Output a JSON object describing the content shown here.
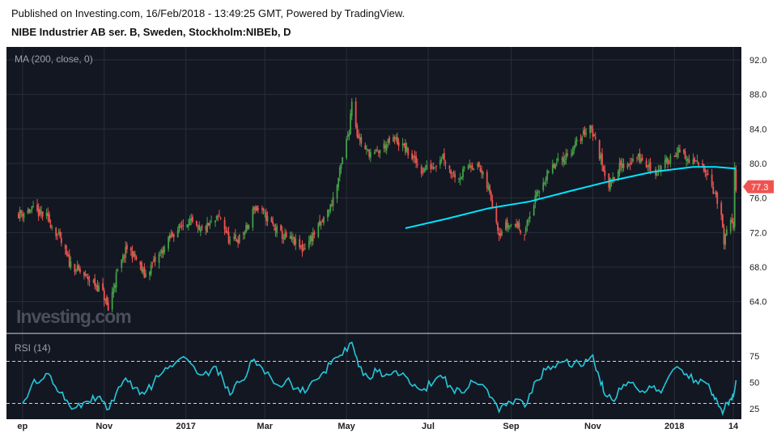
{
  "header": {
    "published": "Published on Investing.com, 16/Feb/2018 - 13:49:25 GMT, Powered by TradingView.",
    "title": "NIBE Industrier AB ser. B, Sweden, Stockholm:NIBEb, D"
  },
  "watermark": "Investing.com",
  "colors": {
    "background": "#131722",
    "up": "#43a047",
    "down": "#ef5350",
    "ma": "#00e5ff",
    "rsi": "#26c6da",
    "price_tag": "#ef5350"
  },
  "chart_data": [
    {
      "type": "candlestick",
      "indicator_label": "MA (200, close, 0)",
      "y_ticks": [
        "92.0",
        "88.0",
        "84.0",
        "80.0",
        "76.0",
        "72.0",
        "68.0",
        "64.0"
      ],
      "ylim": [
        60.5,
        93.5
      ],
      "last_price_label": "77.3",
      "x_ticks": [
        "ep",
        "Nov",
        "2017",
        "Mar",
        "May",
        "Jul",
        "Sep",
        "Nov",
        "2018",
        "14"
      ],
      "price_anchors": [
        [
          "2016-08-29",
          74.2
        ],
        [
          "2016-09-08",
          74.6
        ],
        [
          "2016-09-19",
          73.8
        ],
        [
          "2016-09-28",
          71.5
        ],
        [
          "2016-10-06",
          68.5
        ],
        [
          "2016-10-17",
          67.0
        ],
        [
          "2016-10-24",
          66.2
        ],
        [
          "2016-10-31",
          65.0
        ],
        [
          "2016-11-04",
          63.0
        ],
        [
          "2016-11-10",
          67.0
        ],
        [
          "2016-11-18",
          70.2
        ],
        [
          "2016-11-24",
          69.2
        ],
        [
          "2016-12-01",
          67.0
        ],
        [
          "2016-12-08",
          68.5
        ],
        [
          "2016-12-15",
          70.0
        ],
        [
          "2016-12-22",
          71.8
        ],
        [
          "2017-01-03",
          73.5
        ],
        [
          "2017-01-11",
          72.0
        ],
        [
          "2017-01-20",
          73.0
        ],
        [
          "2017-01-27",
          73.8
        ],
        [
          "2017-02-03",
          70.8
        ],
        [
          "2017-02-10",
          71.3
        ],
        [
          "2017-02-17",
          72.8
        ],
        [
          "2017-02-21",
          75.0
        ],
        [
          "2017-03-01",
          74.0
        ],
        [
          "2017-03-08",
          72.6
        ],
        [
          "2017-03-15",
          71.5
        ],
        [
          "2017-03-22",
          71.0
        ],
        [
          "2017-03-29",
          70.0
        ],
        [
          "2017-04-05",
          71.5
        ],
        [
          "2017-04-12",
          73.0
        ],
        [
          "2017-04-19",
          75.0
        ],
        [
          "2017-04-24",
          77.5
        ],
        [
          "2017-04-28",
          80.5
        ],
        [
          "2017-05-03",
          84.0
        ],
        [
          "2017-05-05",
          87.5
        ],
        [
          "2017-05-09",
          83.5
        ],
        [
          "2017-05-15",
          81.5
        ],
        [
          "2017-05-22",
          81.0
        ],
        [
          "2017-05-29",
          82.0
        ],
        [
          "2017-06-06",
          82.8
        ],
        [
          "2017-06-13",
          81.8
        ],
        [
          "2017-06-20",
          80.5
        ],
        [
          "2017-06-26",
          79.2
        ],
        [
          "2017-07-05",
          79.8
        ],
        [
          "2017-07-12",
          81.0
        ],
        [
          "2017-07-18",
          79.0
        ],
        [
          "2017-07-25",
          78.5
        ],
        [
          "2017-08-01",
          80.0
        ],
        [
          "2017-08-08",
          79.5
        ],
        [
          "2017-08-15",
          77.0
        ],
        [
          "2017-08-18",
          75.5
        ],
        [
          "2017-08-23",
          72.0
        ],
        [
          "2017-08-28",
          72.8
        ],
        [
          "2017-09-05",
          73.0
        ],
        [
          "2017-09-11",
          72.0
        ],
        [
          "2017-09-18",
          75.5
        ],
        [
          "2017-09-25",
          78.0
        ],
        [
          "2017-10-02",
          79.5
        ],
        [
          "2017-10-09",
          80.5
        ],
        [
          "2017-10-16",
          81.5
        ],
        [
          "2017-10-23",
          83.0
        ],
        [
          "2017-10-30",
          84.5
        ],
        [
          "2017-11-03",
          82.5
        ],
        [
          "2017-11-08",
          80.0
        ],
        [
          "2017-11-13",
          77.5
        ],
        [
          "2017-11-20",
          79.5
        ],
        [
          "2017-11-27",
          80.0
        ],
        [
          "2017-12-04",
          80.8
        ],
        [
          "2017-12-11",
          79.8
        ],
        [
          "2017-12-18",
          79.0
        ],
        [
          "2017-12-22",
          79.5
        ],
        [
          "2018-01-03",
          81.5
        ],
        [
          "2018-01-10",
          80.5
        ],
        [
          "2018-01-17",
          80.0
        ],
        [
          "2018-01-24",
          79.5
        ],
        [
          "2018-01-29",
          77.5
        ],
        [
          "2018-02-01",
          76.0
        ],
        [
          "2018-02-05",
          74.0
        ],
        [
          "2018-02-07",
          70.5
        ],
        [
          "2018-02-09",
          72.0
        ],
        [
          "2018-02-12",
          73.2
        ],
        [
          "2018-02-14",
          72.5
        ],
        [
          "2018-02-15",
          80.0
        ],
        [
          "2018-02-16",
          77.3
        ]
      ],
      "ma_200": {
        "label": "MA (200, close, 0)",
        "points": [
          [
            "2017-06-14",
            72.5
          ],
          [
            "2017-07-15",
            73.6
          ],
          [
            "2017-08-15",
            74.8
          ],
          [
            "2017-09-15",
            75.6
          ],
          [
            "2017-10-15",
            76.8
          ],
          [
            "2017-11-15",
            78.0
          ],
          [
            "2017-12-15",
            79.0
          ],
          [
            "2018-01-15",
            79.6
          ],
          [
            "2018-02-01",
            79.6
          ],
          [
            "2018-02-16",
            79.4
          ]
        ]
      }
    },
    {
      "type": "line",
      "indicator_label": "RSI (14)",
      "y_ticks": [
        "75",
        "50",
        "25"
      ],
      "ylim": [
        15,
        95
      ],
      "overbought": 70,
      "oversold": 30,
      "points": [
        [
          "2016-09-01",
          30
        ],
        [
          "2016-09-08",
          48
        ],
        [
          "2016-09-15",
          52
        ],
        [
          "2016-09-22",
          56
        ],
        [
          "2016-09-29",
          40
        ],
        [
          "2016-10-06",
          28
        ],
        [
          "2016-10-13",
          30
        ],
        [
          "2016-10-20",
          32
        ],
        [
          "2016-10-27",
          36
        ],
        [
          "2016-11-03",
          24
        ],
        [
          "2016-11-10",
          40
        ],
        [
          "2016-11-17",
          54
        ],
        [
          "2016-11-24",
          45
        ],
        [
          "2016-12-01",
          39
        ],
        [
          "2016-12-08",
          50
        ],
        [
          "2016-12-15",
          60
        ],
        [
          "2016-12-22",
          65
        ],
        [
          "2017-01-02",
          72
        ],
        [
          "2017-01-12",
          57
        ],
        [
          "2017-01-20",
          62
        ],
        [
          "2017-01-27",
          60
        ],
        [
          "2017-02-03",
          38
        ],
        [
          "2017-02-10",
          50
        ],
        [
          "2017-02-17",
          63
        ],
        [
          "2017-02-21",
          72
        ],
        [
          "2017-03-01",
          58
        ],
        [
          "2017-03-10",
          48
        ],
        [
          "2017-03-17",
          52
        ],
        [
          "2017-03-24",
          44
        ],
        [
          "2017-03-31",
          40
        ],
        [
          "2017-04-07",
          52
        ],
        [
          "2017-04-14",
          60
        ],
        [
          "2017-04-21",
          72
        ],
        [
          "2017-04-28",
          76
        ],
        [
          "2017-05-05",
          88
        ],
        [
          "2017-05-10",
          65
        ],
        [
          "2017-05-17",
          55
        ],
        [
          "2017-05-24",
          60
        ],
        [
          "2017-05-31",
          58
        ],
        [
          "2017-06-07",
          61
        ],
        [
          "2017-06-14",
          56
        ],
        [
          "2017-06-21",
          48
        ],
        [
          "2017-06-28",
          44
        ],
        [
          "2017-07-05",
          50
        ],
        [
          "2017-07-12",
          54
        ],
        [
          "2017-07-19",
          44
        ],
        [
          "2017-07-26",
          40
        ],
        [
          "2017-08-02",
          52
        ],
        [
          "2017-08-09",
          48
        ],
        [
          "2017-08-16",
          36
        ],
        [
          "2017-08-23",
          22
        ],
        [
          "2017-08-30",
          32
        ],
        [
          "2017-09-06",
          34
        ],
        [
          "2017-09-13",
          30
        ],
        [
          "2017-09-20",
          52
        ],
        [
          "2017-09-27",
          62
        ],
        [
          "2017-10-04",
          64
        ],
        [
          "2017-10-11",
          70
        ],
        [
          "2017-10-18",
          68
        ],
        [
          "2017-10-25",
          66
        ],
        [
          "2017-11-01",
          76
        ],
        [
          "2017-11-06",
          54
        ],
        [
          "2017-11-10",
          38
        ],
        [
          "2017-11-17",
          32
        ],
        [
          "2017-11-24",
          48
        ],
        [
          "2017-12-01",
          50
        ],
        [
          "2017-12-08",
          42
        ],
        [
          "2017-12-15",
          45
        ],
        [
          "2017-12-22",
          40
        ],
        [
          "2018-01-03",
          65
        ],
        [
          "2018-01-10",
          58
        ],
        [
          "2018-01-17",
          52
        ],
        [
          "2018-01-24",
          50
        ],
        [
          "2018-01-29",
          38
        ],
        [
          "2018-02-02",
          32
        ],
        [
          "2018-02-06",
          20
        ],
        [
          "2018-02-09",
          30
        ],
        [
          "2018-02-12",
          34
        ],
        [
          "2018-02-14",
          36
        ],
        [
          "2018-02-16",
          52
        ]
      ]
    }
  ]
}
